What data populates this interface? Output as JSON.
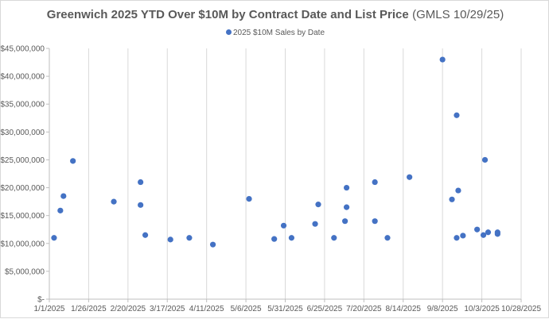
{
  "chart_data": {
    "type": "scatter",
    "title": "Greenwich 2025 YTD Over $10M by Contract Date and List Price",
    "subtitle": "(GMLS 10/29/25)",
    "legend": [
      "2025 $10M Sales by Date"
    ],
    "legend_position": "top",
    "xlabel": "",
    "ylabel": "",
    "grid": "vertical",
    "xlim": [
      "1/1/2025",
      "10/28/2025"
    ],
    "ylim": [
      0,
      45000000
    ],
    "y_ticks": [
      0,
      5000000,
      10000000,
      15000000,
      20000000,
      25000000,
      30000000,
      35000000,
      40000000,
      45000000
    ],
    "y_tick_labels": [
      "$-",
      "$5,000,000",
      "$10,000,000",
      "$15,000,000",
      "$20,000,000",
      "$25,000,000",
      "$30,000,000",
      "$35,000,000",
      "$40,000,000",
      "$45,000,000"
    ],
    "x_tick_labels": [
      "1/1/2025",
      "1/26/2025",
      "2/20/2025",
      "3/17/2025",
      "4/11/2025",
      "5/6/2025",
      "5/31/2025",
      "6/25/2025",
      "7/20/2025",
      "8/14/2025",
      "9/8/2025",
      "10/3/2025",
      "10/28/2025"
    ],
    "series": [
      {
        "name": "2025 $10M Sales by Date",
        "color": "#4472c4",
        "points": [
          {
            "date": "1/4/2025",
            "value": 11000000
          },
          {
            "date": "1/8/2025",
            "value": 15900000
          },
          {
            "date": "1/10/2025",
            "value": 18500000
          },
          {
            "date": "1/16/2025",
            "value": 24800000
          },
          {
            "date": "2/11/2025",
            "value": 17500000
          },
          {
            "date": "2/28/2025",
            "value": 21000000
          },
          {
            "date": "2/28/2025",
            "value": 16900000
          },
          {
            "date": "3/3/2025",
            "value": 11500000
          },
          {
            "date": "3/19/2025",
            "value": 10700000
          },
          {
            "date": "3/31/2025",
            "value": 11000000
          },
          {
            "date": "4/15/2025",
            "value": 9800000
          },
          {
            "date": "5/8/2025",
            "value": 18000000
          },
          {
            "date": "5/24/2025",
            "value": 10800000
          },
          {
            "date": "5/30/2025",
            "value": 13200000
          },
          {
            "date": "6/4/2025",
            "value": 11000000
          },
          {
            "date": "6/19/2025",
            "value": 13500000
          },
          {
            "date": "6/21/2025",
            "value": 17000000
          },
          {
            "date": "7/1/2025",
            "value": 11000000
          },
          {
            "date": "7/8/2025",
            "value": 14000000
          },
          {
            "date": "7/9/2025",
            "value": 20000000
          },
          {
            "date": "7/9/2025",
            "value": 16500000
          },
          {
            "date": "7/27/2025",
            "value": 21000000
          },
          {
            "date": "7/27/2025",
            "value": 14000000
          },
          {
            "date": "8/4/2025",
            "value": 11000000
          },
          {
            "date": "8/18/2025",
            "value": 21900000
          },
          {
            "date": "9/8/2025",
            "value": 43000000
          },
          {
            "date": "9/14/2025",
            "value": 17900000
          },
          {
            "date": "9/17/2025",
            "value": 33000000
          },
          {
            "date": "9/17/2025",
            "value": 11000000
          },
          {
            "date": "9/18/2025",
            "value": 19500000
          },
          {
            "date": "9/21/2025",
            "value": 11400000
          },
          {
            "date": "9/30/2025",
            "value": 12500000
          },
          {
            "date": "10/4/2025",
            "value": 11500000
          },
          {
            "date": "10/5/2025",
            "value": 25000000
          },
          {
            "date": "10/7/2025",
            "value": 12000000
          },
          {
            "date": "10/13/2025",
            "value": 12000000
          },
          {
            "date": "10/13/2025",
            "value": 11700000
          }
        ]
      }
    ]
  }
}
